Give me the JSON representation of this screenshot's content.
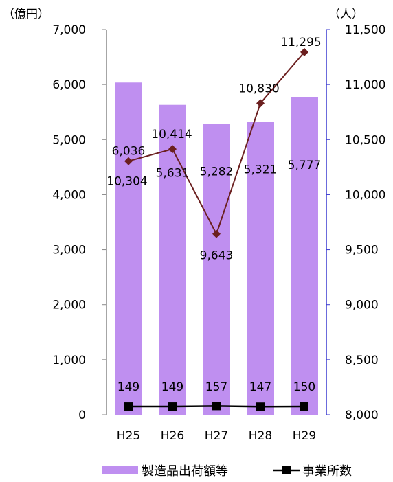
{
  "chart_data": {
    "type": "bar",
    "categories": [
      "H25",
      "H26",
      "H27",
      "H28",
      "H29"
    ],
    "left_unit": "（億円）",
    "right_unit": "（人）",
    "left_axis": {
      "ylim": [
        0,
        7000
      ],
      "ticks": [
        "0",
        "1,000",
        "2,000",
        "3,000",
        "4,000",
        "5,000",
        "6,000",
        "7,000"
      ]
    },
    "right_axis": {
      "ylim": [
        8000,
        11500
      ],
      "ticks": [
        "8,000",
        "8,500",
        "9,000",
        "9,500",
        "10,000",
        "10,500",
        "11,000",
        "11,500"
      ]
    },
    "series": [
      {
        "name": "製造品出荷額等",
        "type": "bar",
        "axis": "left",
        "color": "#bf8ff0",
        "values": [
          6036,
          5631,
          5282,
          5321,
          5777
        ],
        "labels": [
          "6,036",
          "5,631",
          "5,282",
          "5,321",
          "5,777"
        ]
      },
      {
        "name": "事業所数",
        "type": "line",
        "axis": "left",
        "color": "#000000",
        "marker": "square",
        "values": [
          149,
          149,
          157,
          147,
          150
        ],
        "labels": [
          "149",
          "149",
          "157",
          "147",
          "150"
        ]
      },
      {
        "name": "",
        "type": "line",
        "axis": "right",
        "color": "#6b1f1f",
        "marker": "diamond",
        "values": [
          10304,
          10414,
          9643,
          10830,
          11295
        ],
        "labels": [
          "10,304",
          "10,414",
          "9,643",
          "10,830",
          "11,295"
        ]
      }
    ],
    "legend": {
      "position": "bottom",
      "items": [
        "製造品出荷額等",
        "事業所数"
      ]
    },
    "grid": false
  }
}
